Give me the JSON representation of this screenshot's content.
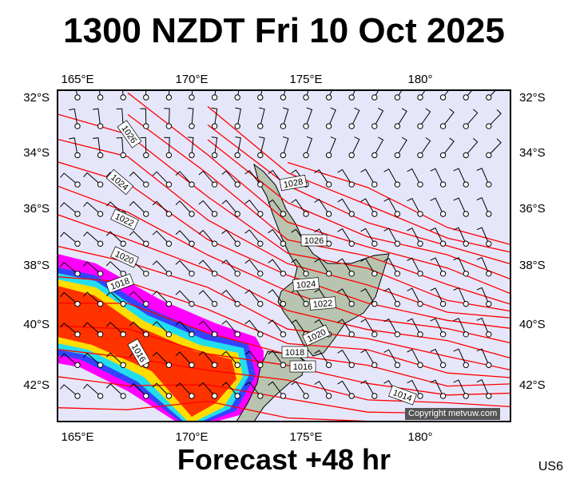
{
  "title": "1300 NZDT Fri 10 Oct 2025",
  "footer": "Forecast +48 hr",
  "model_code": "US6",
  "copyright": "Copyright metvuw.com",
  "axes": {
    "lon_labels": [
      "165°E",
      "170°E",
      "175°E",
      "180°"
    ],
    "lat_labels": [
      "32°S",
      "34°S",
      "36°S",
      "38°S",
      "40°S",
      "42°S"
    ]
  },
  "isobar_labels": {
    "west": [
      "1026",
      "1024",
      "1022",
      "1020",
      "1018",
      "1016"
    ],
    "east": [
      "1028",
      "1026",
      "1024",
      "1022",
      "1020",
      "1018",
      "1016",
      "1014"
    ]
  },
  "colors": {
    "background": "#e6e6fa",
    "isobar": "#ff0000",
    "land": "#b8c4b0",
    "rain_outer": "#ff00ff",
    "rain_core": "#ff3300"
  }
}
